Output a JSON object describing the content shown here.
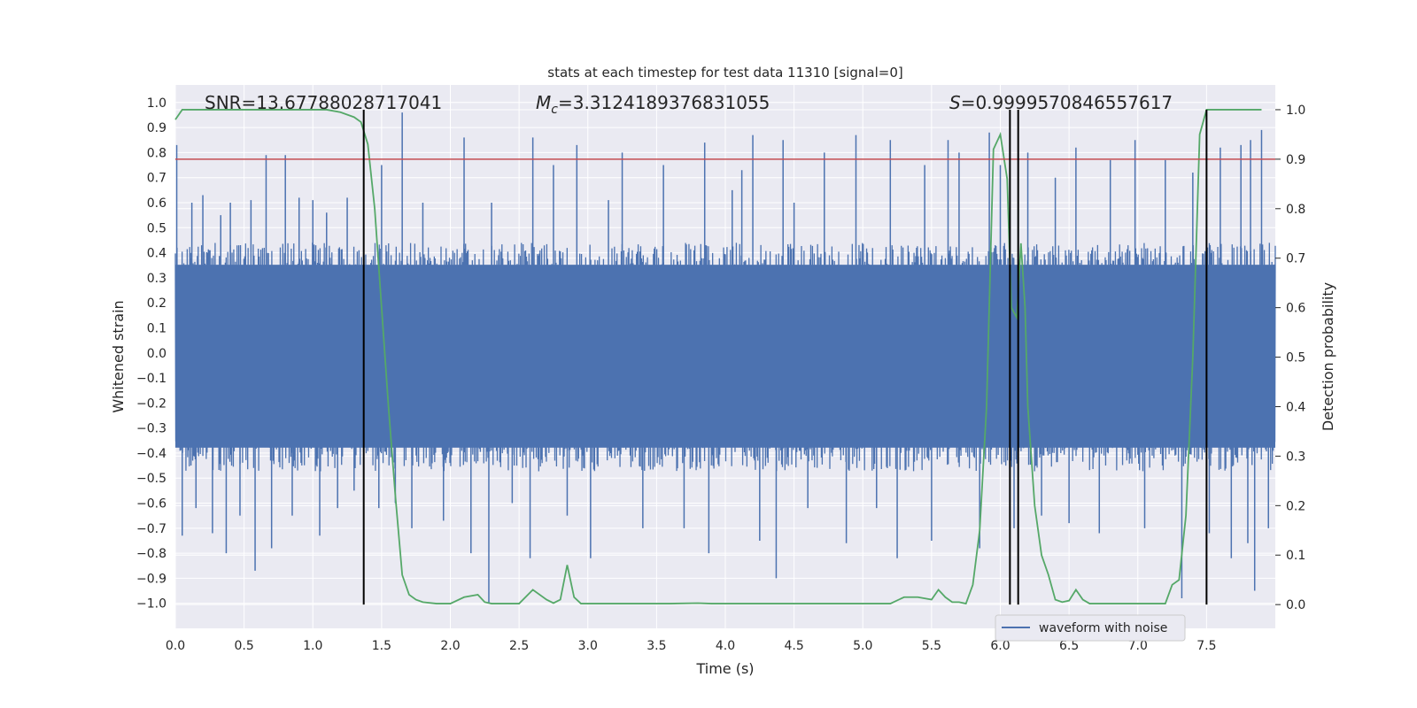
{
  "chart_data": {
    "type": "line",
    "title": "stats at each timestep for test data 11310 [signal=0]",
    "xlabel": "Time (s)",
    "ylabel": "Whitened strain",
    "y2label": "Detection probability",
    "xlim": [
      0.0,
      8.0
    ],
    "ylim": [
      -1.1,
      1.07
    ],
    "y2lim": [
      -0.048,
      1.05
    ],
    "x_ticks": [
      "0.0",
      "0.5",
      "1.0",
      "1.5",
      "2.0",
      "2.5",
      "3.0",
      "3.5",
      "4.0",
      "4.5",
      "5.0",
      "5.5",
      "6.0",
      "6.5",
      "7.0",
      "7.5"
    ],
    "y_ticks": [
      "1.0",
      "0.9",
      "0.8",
      "0.7",
      "0.6",
      "0.5",
      "0.4",
      "0.3",
      "0.2",
      "0.1",
      "0.0",
      "-0.1",
      "-0.2",
      "-0.3",
      "-0.4",
      "-0.5",
      "-0.6",
      "-0.7",
      "-0.8",
      "-0.9",
      "-1.0"
    ],
    "y2_ticks": [
      "1.0",
      "0.9",
      "0.8",
      "0.7",
      "0.6",
      "0.5",
      "0.4",
      "0.3",
      "0.2",
      "0.1",
      "0.0"
    ],
    "grid": true,
    "legend_position": "bottom-right",
    "annotations": {
      "snr": "SNR=13.67788028717041",
      "mc_symbol": "M",
      "mc_sub": "c",
      "mc_value": "=3.3124189376831055",
      "s_symbol": "S",
      "s_value": "=0.9999570846557617"
    },
    "series": [
      {
        "name": "waveform with noise",
        "axis": "left",
        "color": "#4c72b0",
        "style": "dense noise",
        "band_upper": 0.4,
        "band_lower": -0.43,
        "peaks": [
          {
            "x": 0.01,
            "y": 0.83
          },
          {
            "x": 0.05,
            "y": -0.73
          },
          {
            "x": 0.12,
            "y": 0.6
          },
          {
            "x": 0.15,
            "y": -0.62
          },
          {
            "x": 0.2,
            "y": 0.63
          },
          {
            "x": 0.27,
            "y": -0.72
          },
          {
            "x": 0.33,
            "y": 0.55
          },
          {
            "x": 0.37,
            "y": -0.8
          },
          {
            "x": 0.4,
            "y": 0.6
          },
          {
            "x": 0.47,
            "y": -0.65
          },
          {
            "x": 0.55,
            "y": 0.61
          },
          {
            "x": 0.58,
            "y": -0.87
          },
          {
            "x": 0.66,
            "y": 0.79
          },
          {
            "x": 0.7,
            "y": -0.78
          },
          {
            "x": 0.8,
            "y": 0.79
          },
          {
            "x": 0.85,
            "y": -0.65
          },
          {
            "x": 0.9,
            "y": 0.62
          },
          {
            "x": 1.0,
            "y": 0.61
          },
          {
            "x": 1.05,
            "y": -0.73
          },
          {
            "x": 1.1,
            "y": 0.56
          },
          {
            "x": 1.18,
            "y": -0.62
          },
          {
            "x": 1.25,
            "y": 0.62
          },
          {
            "x": 1.3,
            "y": -0.55
          },
          {
            "x": 1.48,
            "y": -0.62
          },
          {
            "x": 1.5,
            "y": 0.75
          },
          {
            "x": 1.6,
            "y": -0.6
          },
          {
            "x": 1.65,
            "y": 0.96
          },
          {
            "x": 1.72,
            "y": -0.7
          },
          {
            "x": 1.8,
            "y": 0.6
          },
          {
            "x": 1.95,
            "y": -0.67
          },
          {
            "x": 2.1,
            "y": 0.86
          },
          {
            "x": 2.15,
            "y": -0.8
          },
          {
            "x": 2.28,
            "y": -1.0
          },
          {
            "x": 2.3,
            "y": 0.6
          },
          {
            "x": 2.45,
            "y": -0.6
          },
          {
            "x": 2.58,
            "y": -0.82
          },
          {
            "x": 2.6,
            "y": 0.86
          },
          {
            "x": 2.75,
            "y": 0.75
          },
          {
            "x": 2.85,
            "y": -0.65
          },
          {
            "x": 2.92,
            "y": 0.83
          },
          {
            "x": 3.02,
            "y": -0.82
          },
          {
            "x": 3.15,
            "y": 0.61
          },
          {
            "x": 3.25,
            "y": 0.8
          },
          {
            "x": 3.4,
            "y": -0.7
          },
          {
            "x": 3.55,
            "y": 0.75
          },
          {
            "x": 3.7,
            "y": -0.7
          },
          {
            "x": 3.85,
            "y": 0.84
          },
          {
            "x": 3.88,
            "y": -0.8
          },
          {
            "x": 4.05,
            "y": 0.65
          },
          {
            "x": 4.12,
            "y": 0.73
          },
          {
            "x": 4.2,
            "y": 0.87
          },
          {
            "x": 4.25,
            "y": -0.75
          },
          {
            "x": 4.37,
            "y": -0.9
          },
          {
            "x": 4.42,
            "y": 0.85
          },
          {
            "x": 4.5,
            "y": 0.6
          },
          {
            "x": 4.6,
            "y": -0.62
          },
          {
            "x": 4.72,
            "y": 0.8
          },
          {
            "x": 4.88,
            "y": -0.76
          },
          {
            "x": 4.95,
            "y": 0.87
          },
          {
            "x": 5.1,
            "y": -0.62
          },
          {
            "x": 5.2,
            "y": 0.85
          },
          {
            "x": 5.25,
            "y": -0.82
          },
          {
            "x": 5.45,
            "y": 0.75
          },
          {
            "x": 5.5,
            "y": -0.75
          },
          {
            "x": 5.62,
            "y": 0.85
          },
          {
            "x": 5.7,
            "y": 0.8
          },
          {
            "x": 5.85,
            "y": -0.78
          },
          {
            "x": 5.92,
            "y": 0.88
          },
          {
            "x": 6.0,
            "y": 0.75
          },
          {
            "x": 6.1,
            "y": -0.7
          },
          {
            "x": 6.2,
            "y": 0.8
          },
          {
            "x": 6.3,
            "y": -0.65
          },
          {
            "x": 6.4,
            "y": 0.7
          },
          {
            "x": 6.5,
            "y": -0.68
          },
          {
            "x": 6.55,
            "y": 0.82
          },
          {
            "x": 6.72,
            "y": -0.72
          },
          {
            "x": 6.8,
            "y": 0.77
          },
          {
            "x": 6.98,
            "y": 0.85
          },
          {
            "x": 7.05,
            "y": -0.7
          },
          {
            "x": 7.2,
            "y": 0.77
          },
          {
            "x": 7.32,
            "y": -0.98
          },
          {
            "x": 7.4,
            "y": 0.72
          },
          {
            "x": 7.52,
            "y": -0.72
          },
          {
            "x": 7.6,
            "y": 0.82
          },
          {
            "x": 7.68,
            "y": -0.82
          },
          {
            "x": 7.75,
            "y": 0.83
          },
          {
            "x": 7.8,
            "y": -0.76
          },
          {
            "x": 7.82,
            "y": 0.85
          },
          {
            "x": 7.85,
            "y": -0.95
          },
          {
            "x": 7.9,
            "y": 0.89
          },
          {
            "x": 7.95,
            "y": -0.7
          }
        ]
      },
      {
        "name": "",
        "axis": "right",
        "color": "#55a868",
        "x": [
          0.0,
          0.05,
          0.1,
          0.2,
          0.4,
          0.6,
          0.8,
          1.0,
          1.1,
          1.2,
          1.3,
          1.35,
          1.4,
          1.45,
          1.5,
          1.55,
          1.6,
          1.65,
          1.7,
          1.75,
          1.8,
          1.9,
          2.0,
          2.1,
          2.2,
          2.25,
          2.3,
          2.4,
          2.5,
          2.6,
          2.7,
          2.75,
          2.8,
          2.85,
          2.9,
          2.95,
          3.0,
          3.05,
          3.1,
          3.2,
          3.4,
          3.6,
          3.8,
          3.9,
          4.0,
          4.2,
          4.4,
          4.6,
          4.8,
          5.0,
          5.2,
          5.3,
          5.4,
          5.5,
          5.55,
          5.6,
          5.65,
          5.7,
          5.75,
          5.8,
          5.85,
          5.9,
          5.95,
          6.0,
          6.05,
          6.08,
          6.12,
          6.15,
          6.18,
          6.2,
          6.25,
          6.3,
          6.35,
          6.4,
          6.45,
          6.5,
          6.55,
          6.6,
          6.65,
          6.7,
          6.75,
          6.8,
          6.85,
          6.9,
          7.0,
          7.1,
          7.2,
          7.25,
          7.3,
          7.35,
          7.4,
          7.45,
          7.5,
          7.55,
          7.6,
          7.65,
          7.7,
          7.8,
          7.9
        ],
        "y": [
          0.98,
          1.0,
          1.0,
          1.0,
          1.0,
          1.0,
          1.0,
          1.0,
          1.0,
          0.995,
          0.985,
          0.975,
          0.93,
          0.8,
          0.6,
          0.4,
          0.22,
          0.06,
          0.02,
          0.01,
          0.005,
          0.002,
          0.002,
          0.015,
          0.02,
          0.005,
          0.002,
          0.002,
          0.002,
          0.03,
          0.01,
          0.003,
          0.01,
          0.08,
          0.015,
          0.002,
          0.002,
          0.002,
          0.002,
          0.002,
          0.002,
          0.002,
          0.003,
          0.002,
          0.002,
          0.002,
          0.002,
          0.002,
          0.002,
          0.002,
          0.002,
          0.015,
          0.015,
          0.01,
          0.03,
          0.015,
          0.005,
          0.005,
          0.002,
          0.04,
          0.15,
          0.4,
          0.92,
          0.95,
          0.86,
          0.6,
          0.58,
          0.73,
          0.6,
          0.4,
          0.2,
          0.1,
          0.06,
          0.01,
          0.005,
          0.008,
          0.03,
          0.01,
          0.002,
          0.002,
          0.002,
          0.002,
          0.002,
          0.002,
          0.002,
          0.002,
          0.002,
          0.04,
          0.05,
          0.18,
          0.5,
          0.95,
          1.0,
          1.0,
          1.0,
          1.0,
          1.0,
          1.0,
          1.0
        ]
      },
      {
        "name": "",
        "axis": "right",
        "color": "#c44e52",
        "type": "threshold",
        "y": 0.9
      }
    ],
    "vlines": [
      1.37,
      6.07,
      6.13,
      7.5
    ]
  }
}
